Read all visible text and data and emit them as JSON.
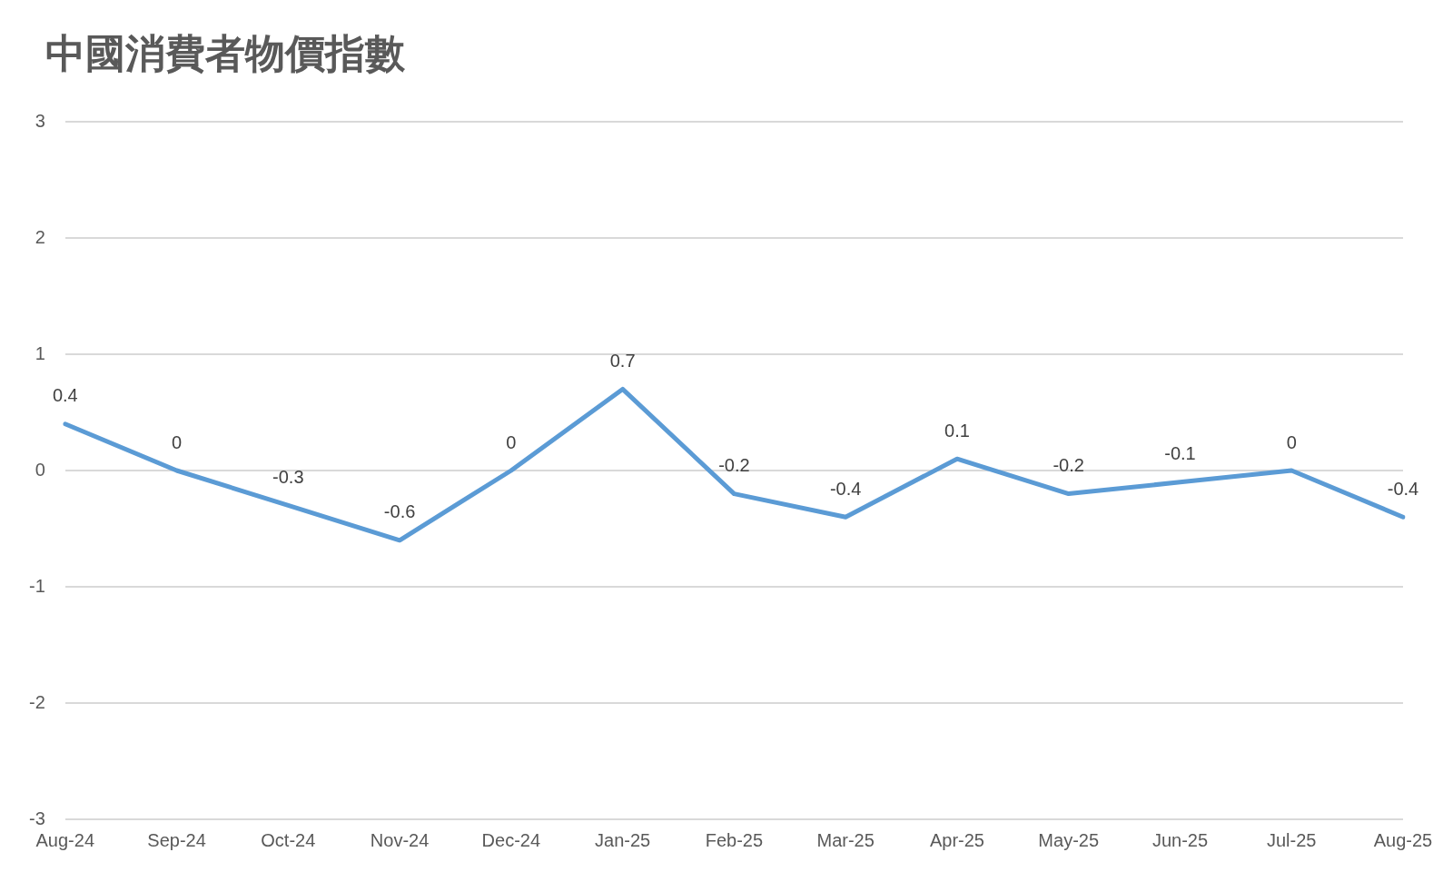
{
  "chart_data": {
    "type": "line",
    "title": "中國消費者物價指數",
    "categories": [
      "Aug-24",
      "Sep-24",
      "Oct-24",
      "Nov-24",
      "Dec-24",
      "Jan-25",
      "Feb-25",
      "Mar-25",
      "Apr-25",
      "May-25",
      "Jun-25",
      "Jul-25",
      "Aug-25"
    ],
    "series": [
      {
        "color": "#5b9bd5",
        "values": [
          0.4,
          0,
          -0.3,
          -0.6,
          0,
          0.7,
          -0.2,
          -0.4,
          0.1,
          -0.2,
          -0.1,
          0,
          -0.4
        ]
      }
    ],
    "ylim": [
      -3,
      3
    ],
    "yticks": [
      -3,
      -2,
      -1,
      0,
      1,
      2,
      3
    ],
    "grid": "y",
    "legend": false,
    "marker": "none",
    "line_style": "solid",
    "data_labels": true
  }
}
